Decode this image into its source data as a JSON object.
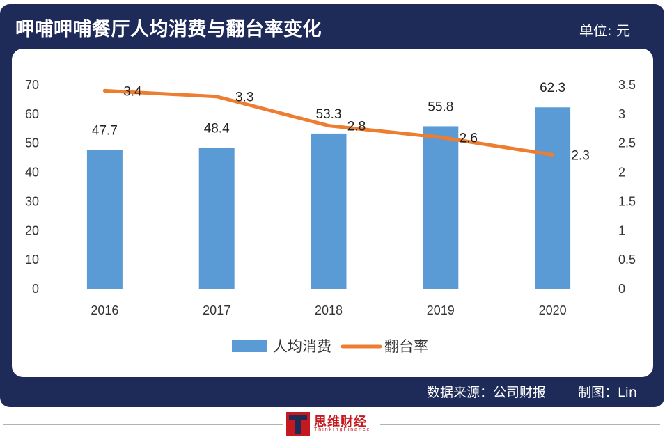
{
  "header": {
    "title": "呷哺呷哺餐厅人均消费与翻台率变化",
    "unit": "单位: 元"
  },
  "footer": {
    "source": "数据来源：公司财报",
    "credit": "制图：Lin"
  },
  "logo": {
    "name": "思维财经",
    "en": "ThinkingFinance"
  },
  "colors": {
    "frame": "#1e2b59",
    "bar": "#5b9bd5",
    "line": "#ed7d31",
    "logo": "#c41a1f"
  },
  "chart_data": {
    "type": "bar",
    "categories": [
      "2016",
      "2017",
      "2018",
      "2019",
      "2020"
    ],
    "series": [
      {
        "name": "人均消费",
        "type": "bar",
        "axis": "left",
        "values": [
          47.7,
          48.4,
          53.3,
          55.8,
          62.3
        ]
      },
      {
        "name": "翻台率",
        "type": "line",
        "axis": "right",
        "values": [
          3.4,
          3.3,
          2.8,
          2.6,
          2.3
        ]
      }
    ],
    "data_labels": {
      "bar": [
        "47.7",
        "48.4",
        "53.3",
        "55.8",
        "62.3"
      ],
      "line": [
        "3.4",
        "3.3",
        "2.8",
        "2.6",
        "2.3"
      ]
    },
    "left_axis": {
      "min": 0,
      "max": 70,
      "ticks": [
        "0",
        "10",
        "20",
        "30",
        "40",
        "50",
        "60",
        "70"
      ]
    },
    "right_axis": {
      "min": 0,
      "max": 3.5,
      "ticks": [
        "0",
        "0.5",
        "1",
        "1.5",
        "2",
        "2.5",
        "3",
        "3.5"
      ]
    },
    "grid": false,
    "legend": "bottom",
    "legend_items": [
      "人均消费",
      "翻台率"
    ]
  }
}
